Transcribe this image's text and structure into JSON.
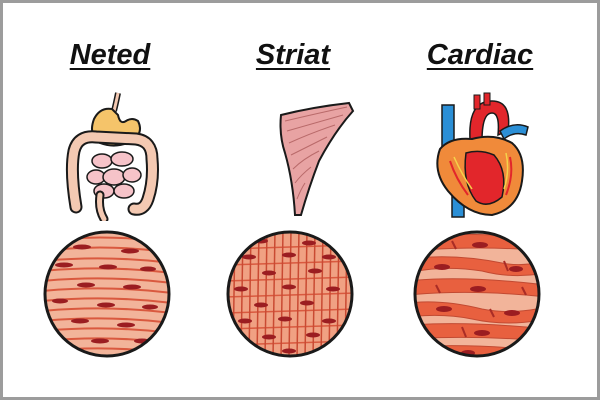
{
  "columns": [
    {
      "title": "Neted",
      "organ_icon": "digestive-tract-icon",
      "tissue": "smooth-muscle-tissue"
    },
    {
      "title": "Striat",
      "organ_icon": "skeletal-muscle-icon",
      "tissue": "striated-muscle-tissue"
    },
    {
      "title": "Cardiac",
      "organ_icon": "heart-icon",
      "tissue": "cardiac-muscle-tissue"
    }
  ],
  "colors": {
    "tissue_base": "#f2b49a",
    "fiber": "#d9593f",
    "nucleus": "#9b1d21",
    "outline": "#1a1a1a",
    "heart_red": "#e2262b",
    "heart_blue": "#2b8fd6",
    "heart_orange": "#f08a3a",
    "gut": "#f4c9b2",
    "stomach": "#f5c46a",
    "skeletal_muscle": "#e8a3a3",
    "frame_border": "#9c9c9c"
  }
}
